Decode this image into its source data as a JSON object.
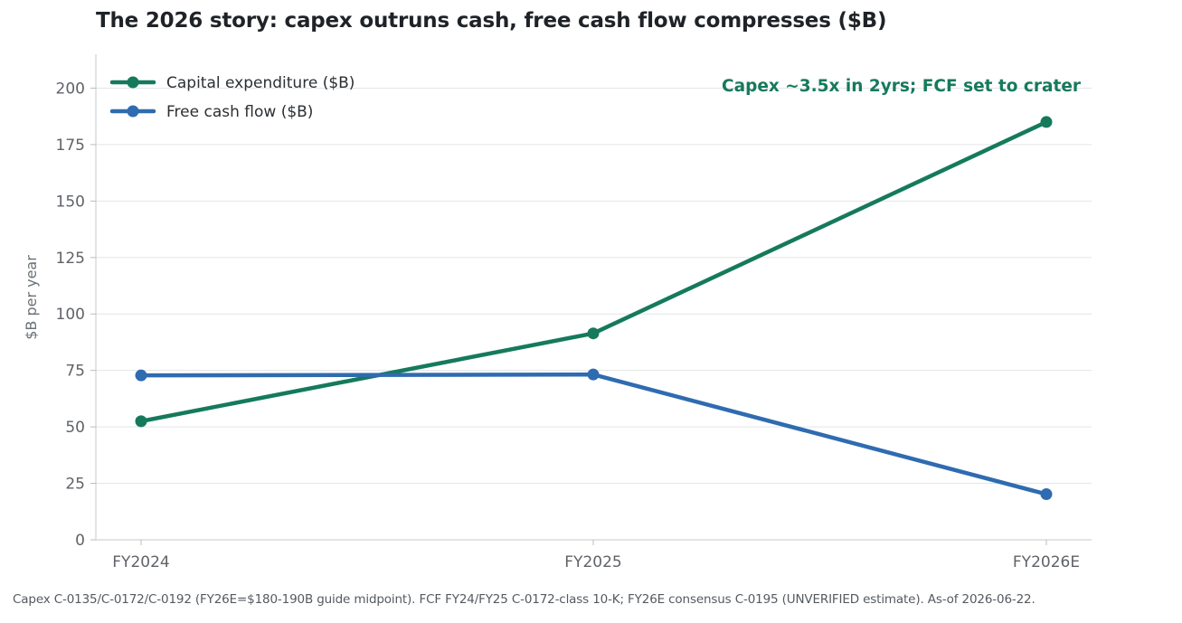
{
  "title": "The 2026 story: capex outruns cash, free cash flow compresses ($B)",
  "footnote": "Capex C-0135/C-0172/C-0192 (FY26E=$180-190B guide midpoint). FCF FY24/FY25 C-0172-class 10-K; FY26E consensus C-0195 (UNVERIFIED estimate). As-of 2026-06-22.",
  "chart_data": {
    "type": "line",
    "categories": [
      "FY2024",
      "FY2025",
      "FY2026E"
    ],
    "series": [
      {
        "name": "Capital expenditure ($B)",
        "color": "#157a5c",
        "values": [
          52.5,
          91.4,
          185
        ]
      },
      {
        "name": "Free cash flow ($B)",
        "color": "#2f6bb0",
        "values": [
          72.8,
          73.2,
          20.2
        ]
      }
    ],
    "ylabel": "$B per year",
    "xlabel": "",
    "ylim": [
      0,
      215
    ],
    "yticks": [
      0,
      25,
      50,
      75,
      100,
      125,
      150,
      175,
      200
    ],
    "grid": "horizontal",
    "legend_position": "top-left",
    "annotation": {
      "text": "Capex ~3.5x in 2yrs; FCF set to crater",
      "color": "#157a5c"
    }
  }
}
